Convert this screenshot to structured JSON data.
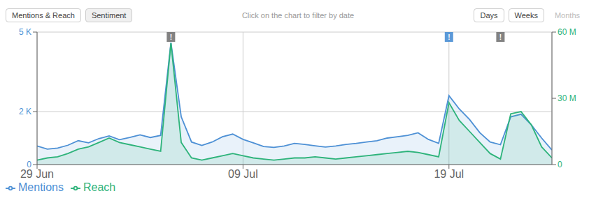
{
  "chart_data": {
    "type": "area",
    "subtitle": "Click on the chart to filter by date",
    "x": [
      0,
      1,
      2,
      3,
      4,
      5,
      6,
      7,
      8,
      9,
      10,
      11,
      12,
      13,
      14,
      15,
      16,
      17,
      18,
      19,
      20,
      21,
      22,
      23,
      24,
      25,
      26,
      27,
      28,
      29,
      30,
      31,
      32,
      33,
      34,
      35,
      36,
      37,
      38,
      39,
      40,
      41,
      42,
      43,
      44,
      45,
      46,
      47,
      48,
      49,
      50
    ],
    "series": [
      {
        "name": "Mentions",
        "color": "#4d90d5",
        "values": [
          700,
          580,
          620,
          730,
          900,
          820,
          980,
          1080,
          940,
          1020,
          1120,
          1020,
          1100,
          4600,
          1800,
          850,
          720,
          850,
          1050,
          1150,
          950,
          820,
          680,
          650,
          700,
          800,
          760,
          710,
          660,
          700,
          760,
          800,
          850,
          900,
          1000,
          1050,
          1100,
          1200,
          950,
          800,
          2600,
          2100,
          1700,
          1200,
          850,
          750,
          1800,
          1900,
          1500,
          1000,
          550
        ]
      },
      {
        "name": "Reach",
        "color": "#2db37a",
        "axis": "y2",
        "values": [
          2,
          3,
          3.5,
          5,
          7,
          8,
          10,
          12,
          10,
          9,
          8,
          7,
          6,
          55,
          10,
          3,
          2,
          3,
          4,
          5,
          4,
          3,
          2.5,
          2,
          2.5,
          3,
          3,
          3.5,
          3,
          2.5,
          3,
          3.5,
          4,
          4.5,
          5,
          5.5,
          6,
          5.5,
          4.5,
          3.5,
          28,
          20,
          15,
          10,
          5,
          2.5,
          23,
          24,
          18,
          8,
          3
        ]
      }
    ],
    "xlim": [
      0,
      50
    ],
    "xticks": [
      {
        "value": 0,
        "label": "29 Jun"
      },
      {
        "value": 20,
        "label": "09 Jul"
      },
      {
        "value": 40,
        "label": "19 Jul"
      }
    ],
    "ylim": [
      0,
      5000
    ],
    "yticks": [
      0,
      {
        "value": 2000,
        "label": "2 K"
      },
      {
        "value": 5000,
        "label": "5 K"
      }
    ],
    "y2lim": [
      0,
      60
    ],
    "y2ticks": [
      0,
      {
        "value": 30,
        "label": "30 M"
      },
      {
        "value": 60,
        "label": "60 M"
      }
    ],
    "grid": true,
    "legend": "bottom",
    "annotations": [
      {
        "text": "!",
        "x": 13,
        "y": 5000,
        "color": "#777777"
      },
      {
        "text": "!",
        "x": 40,
        "y": 5000,
        "color": "#4d90d5"
      },
      {
        "text": "!",
        "x": 45,
        "y": 5000,
        "color": "#777777"
      },
      {
        "text": "Mentions & Reach"
      },
      {
        "text": "Sentiment"
      },
      {
        "text": "Days"
      },
      {
        "text": "Weeks"
      },
      {
        "text": "Months",
        "color": "#bbbbbb"
      }
    ]
  }
}
